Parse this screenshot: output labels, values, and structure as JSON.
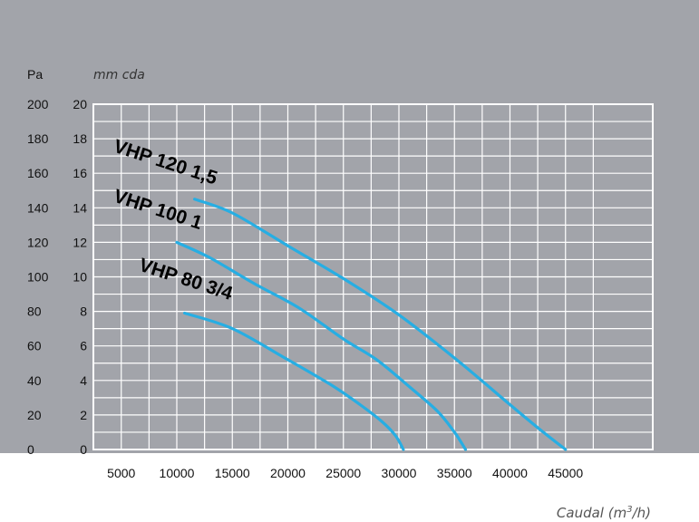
{
  "chart_data": {
    "type": "line",
    "left_axis_unit": "Pa",
    "right_axis_unit": "mm cda",
    "xlabel_text": "Caudal (m",
    "xlabel_sup": "3",
    "xlabel_close": "/h)",
    "x_ticks": [
      5000,
      10000,
      15000,
      20000,
      25000,
      30000,
      35000,
      40000,
      45000
    ],
    "y_ticks_pa": [
      0,
      20,
      40,
      60,
      80,
      100,
      120,
      140,
      160,
      180,
      200
    ],
    "y_ticks_mm": [
      0,
      2,
      4,
      6,
      8,
      10,
      12,
      14,
      16,
      18,
      20
    ],
    "xlim": [
      0,
      50000
    ],
    "ylim_mm": [
      0,
      20
    ],
    "grid": true,
    "series": [
      {
        "name": "VHP 120 1,5",
        "x": [
          11600,
          15000,
          20000,
          25000,
          30000,
          35000,
          40000,
          43000,
          45000
        ],
        "y": [
          14.5,
          13.7,
          11.8,
          9.9,
          7.8,
          5.3,
          2.6,
          1.0,
          0.0
        ]
      },
      {
        "name": "VHP 100 1",
        "x": [
          10000,
          13000,
          17000,
          21000,
          25000,
          28000,
          31000,
          33500,
          35000,
          36000
        ],
        "y": [
          12.0,
          11.1,
          9.6,
          8.2,
          6.4,
          5.2,
          3.6,
          2.2,
          1.0,
          0.0
        ]
      },
      {
        "name": "VHP 80 3/4",
        "x": [
          10700,
          15000,
          20000,
          24000,
          26500,
          28500,
          29700,
          30400
        ],
        "y": [
          7.9,
          7.0,
          5.2,
          3.7,
          2.6,
          1.6,
          0.8,
          0.0
        ]
      }
    ],
    "series_color": "#27aee3"
  }
}
